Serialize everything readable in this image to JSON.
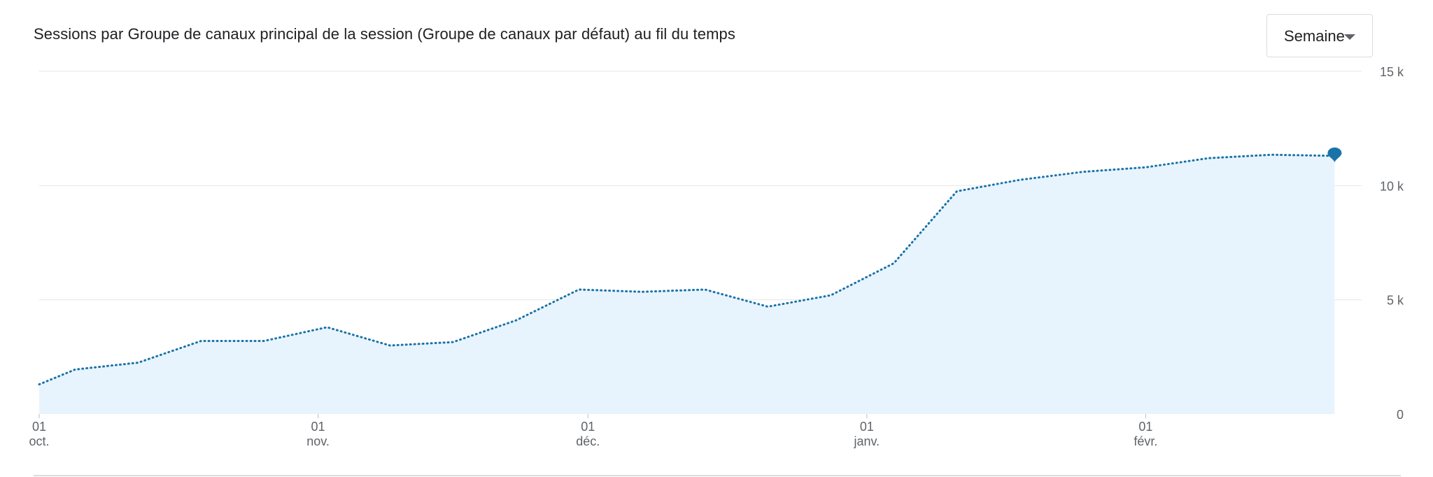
{
  "title": "Sessions par Groupe de canaux principal de la session (Groupe de canaux par défaut) au fil du temps",
  "period_select": {
    "value": "Semaine"
  },
  "colors": {
    "line": "#1a73a8",
    "area": "#e8f4fd",
    "grid": "#e6e6e6",
    "axis_text": "#5f6368",
    "marker": "#1a73a8"
  },
  "chart_data": {
    "type": "area",
    "ylim": [
      0,
      15000
    ],
    "y_ticks": [
      {
        "value": 0,
        "label": "0"
      },
      {
        "value": 5000,
        "label": "5 k"
      },
      {
        "value": 10000,
        "label": "10 k"
      },
      {
        "value": 15000,
        "label": "15 k"
      }
    ],
    "x_ticks": [
      {
        "date": "2022-10-01",
        "day": "01",
        "month": "oct."
      },
      {
        "date": "2022-11-01",
        "day": "01",
        "month": "nov."
      },
      {
        "date": "2022-12-01",
        "day": "01",
        "month": "déc."
      },
      {
        "date": "2023-01-01",
        "day": "01",
        "month": "janv."
      },
      {
        "date": "2023-02-01",
        "day": "01",
        "month": "févr."
      }
    ],
    "x_range": [
      "2022-10-01",
      "2023-02-25"
    ],
    "series": [
      {
        "line_style": "dotted",
        "points": [
          {
            "x": "2022-10-01",
            "y": 1300
          },
          {
            "x": "2022-10-05",
            "y": 1950
          },
          {
            "x": "2022-10-12",
            "y": 2250
          },
          {
            "x": "2022-10-19",
            "y": 3200
          },
          {
            "x": "2022-10-26",
            "y": 3200
          },
          {
            "x": "2022-11-02",
            "y": 3800
          },
          {
            "x": "2022-11-09",
            "y": 3000
          },
          {
            "x": "2022-11-16",
            "y": 3150
          },
          {
            "x": "2022-11-23",
            "y": 4100
          },
          {
            "x": "2022-11-30",
            "y": 5450
          },
          {
            "x": "2022-12-07",
            "y": 5350
          },
          {
            "x": "2022-12-14",
            "y": 5450
          },
          {
            "x": "2022-12-21",
            "y": 4700
          },
          {
            "x": "2022-12-28",
            "y": 5200
          },
          {
            "x": "2023-01-04",
            "y": 6600
          },
          {
            "x": "2023-01-11",
            "y": 9750
          },
          {
            "x": "2023-01-18",
            "y": 10250
          },
          {
            "x": "2023-01-25",
            "y": 10600
          },
          {
            "x": "2023-02-01",
            "y": 10800
          },
          {
            "x": "2023-02-08",
            "y": 11200
          },
          {
            "x": "2023-02-15",
            "y": 11350
          },
          {
            "x": "2023-02-22",
            "y": 11300
          }
        ]
      }
    ]
  }
}
